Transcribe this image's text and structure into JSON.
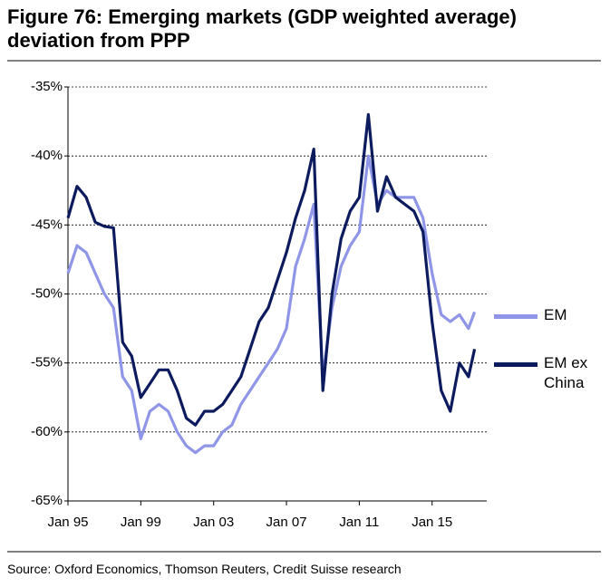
{
  "chart_data": {
    "type": "line",
    "title": "Figure 76: Emerging markets (GDP weighted average) deviation from PPP",
    "source": "Source: Oxford Economics, Thomson Reuters, Credit Suisse research",
    "x": [
      "1995-01",
      "1995-07",
      "1996-01",
      "1996-07",
      "1997-01",
      "1997-07",
      "1998-01",
      "1998-07",
      "1999-01",
      "1999-07",
      "2000-01",
      "2000-07",
      "2001-01",
      "2001-07",
      "2002-01",
      "2002-07",
      "2003-01",
      "2003-07",
      "2004-01",
      "2004-07",
      "2005-01",
      "2005-07",
      "2006-01",
      "2006-07",
      "2007-01",
      "2007-07",
      "2008-01",
      "2008-07",
      "2009-01",
      "2009-07",
      "2010-01",
      "2010-07",
      "2011-01",
      "2011-07",
      "2012-01",
      "2012-07",
      "2013-01",
      "2013-07",
      "2014-01",
      "2014-07",
      "2015-01",
      "2015-07",
      "2016-01",
      "2016-07",
      "2017-01",
      "2017-05"
    ],
    "series": [
      {
        "name": "EM",
        "color": "#8f96e8",
        "values": [
          -48.5,
          -46.5,
          -47,
          -48.5,
          -50,
          -51,
          -56,
          -57,
          -60.5,
          -58.5,
          -58,
          -58.5,
          -60,
          -61,
          -61.5,
          -61,
          -61,
          -60,
          -59.5,
          -58,
          -57,
          -56,
          -55,
          -54,
          -52.5,
          -48,
          -46,
          -43.5,
          -56,
          -51,
          -48,
          -46.5,
          -45.5,
          -40,
          -43.5,
          -42.5,
          -43,
          -43,
          -43,
          -44.5,
          -48.5,
          -51.5,
          -52,
          -51.5,
          -52.5,
          -51.3
        ]
      },
      {
        "name": "EM ex China",
        "color": "#0c1a5e",
        "values": [
          -44.5,
          -42.2,
          -43,
          -44.8,
          -45.1,
          -45.2,
          -53.5,
          -54.5,
          -57.5,
          -56.5,
          -55.5,
          -55.5,
          -57,
          -59,
          -59.5,
          -58.5,
          -58.5,
          -58,
          -57,
          -56,
          -54,
          -52,
          -51,
          -49,
          -47,
          -44.5,
          -42.5,
          -39.5,
          -57,
          -50,
          -46,
          -44,
          -43,
          -37,
          -44,
          -41.5,
          -43,
          -43.5,
          -44,
          -45.5,
          -52,
          -57,
          -58.5,
          -55,
          -56,
          -54
        ]
      }
    ],
    "xlim": [
      "1995-01",
      "2018-01"
    ],
    "xticks": [
      {
        "value": "1995-01",
        "label": "Jan 95"
      },
      {
        "value": "1999-01",
        "label": "Jan 99"
      },
      {
        "value": "2003-01",
        "label": "Jan 03"
      },
      {
        "value": "2007-01",
        "label": "Jan 07"
      },
      {
        "value": "2011-01",
        "label": "Jan 11"
      },
      {
        "value": "2015-01",
        "label": "Jan 15"
      }
    ],
    "ylim": [
      -65,
      -35
    ],
    "yticks": [
      {
        "value": -65,
        "label": "-65%"
      },
      {
        "value": -60,
        "label": "-60%"
      },
      {
        "value": -55,
        "label": "-55%"
      },
      {
        "value": -50,
        "label": "-50%"
      },
      {
        "value": -45,
        "label": "-45%"
      },
      {
        "value": -40,
        "label": "-40%"
      },
      {
        "value": -35,
        "label": "-35%"
      }
    ],
    "grid": true,
    "legend": "right"
  }
}
